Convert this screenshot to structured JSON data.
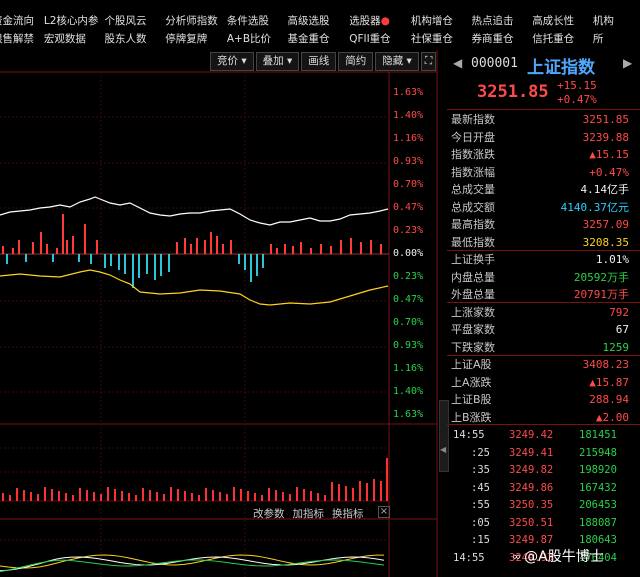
{
  "menu_row1": [
    "资金流向",
    "L2核心内参",
    "个股风云",
    "分析师指数",
    "条件选股",
    "高级选股",
    "选股器",
    "机构增仓",
    "热点追击",
    "高成长性",
    "机构"
  ],
  "menu_row2": [
    "限售解禁",
    "宏观数据",
    "股东人数",
    "停牌复牌",
    "A+B比价",
    "基金重仓",
    "QFII重仓",
    "社保重仓",
    "券商重仓",
    "信托重仓",
    "所"
  ],
  "toolbar": [
    "竞价",
    "叠加",
    "画线",
    "简约",
    "隐藏"
  ],
  "axis_labels": {
    "up": [
      "1.63%",
      "1.40%",
      "1.16%",
      "0.93%",
      "0.70%",
      "0.47%",
      "0.23%"
    ],
    "zero": "0.00%",
    "down": [
      "0.23%",
      "0.47%",
      "0.70%",
      "0.93%",
      "1.16%",
      "1.40%",
      "1.63%"
    ]
  },
  "sub_toolbar": [
    "改参数",
    "加指标",
    "换指标"
  ],
  "panel": {
    "code": "000001",
    "name": "上证指数",
    "price": "3251.85",
    "change": "+15.15",
    "change_pct": "+0.47%",
    "rows": [
      {
        "label": "最新指数",
        "value": "3251.85",
        "color": "red"
      },
      {
        "label": "今日开盘",
        "value": "3239.88",
        "color": "red"
      },
      {
        "label": "指数涨跌",
        "value": "▲15.15",
        "color": "red"
      },
      {
        "label": "指数涨幅",
        "value": "+0.47%",
        "color": "red"
      },
      {
        "label": "总成交量",
        "value": "4.14亿手",
        "color": "white"
      },
      {
        "label": "总成交额",
        "value": "4140.37亿元",
        "color": "cyan"
      },
      {
        "label": "最高指数",
        "value": "3257.09",
        "color": "red"
      },
      {
        "label": "最低指数",
        "value": "3208.35",
        "color": "yellow"
      },
      {
        "label": "上证换手",
        "value": "1.01%",
        "color": "white"
      },
      {
        "label": "内盘总量",
        "value": "20592万手",
        "color": "green"
      },
      {
        "label": "外盘总量",
        "value": "20791万手",
        "color": "red"
      },
      {
        "label": "上涨家数",
        "value": "792",
        "color": "red"
      },
      {
        "label": "平盘家数",
        "value": "67",
        "color": "white"
      },
      {
        "label": "下跌家数",
        "value": "1259",
        "color": "green"
      },
      {
        "label": "上证A股",
        "value": "3408.23",
        "color": "red"
      },
      {
        "label": "上A涨跌",
        "value": "▲15.87",
        "color": "red"
      },
      {
        "label": "上证B股",
        "value": "288.94",
        "color": "red"
      },
      {
        "label": "上B涨跌",
        "value": "▲2.00",
        "color": "red"
      }
    ]
  },
  "ticks": [
    {
      "time": "14:55",
      "price": "3249.42",
      "vol": "181451"
    },
    {
      "time": ":25",
      "price": "3249.41",
      "vol": "215948"
    },
    {
      "time": ":35",
      "price": "3249.82",
      "vol": "198920"
    },
    {
      "time": ":45",
      "price": "3249.86",
      "vol": "167432"
    },
    {
      "time": ":55",
      "price": "3250.35",
      "vol": "206453"
    },
    {
      "time": ":05",
      "price": "3250.51",
      "vol": "188087"
    },
    {
      "time": ":15",
      "price": "3249.87",
      "vol": "180643"
    },
    {
      "time": "14:55",
      "price": "3249.93",
      "vol": "176404"
    }
  ],
  "watermark": "@A股牛博士",
  "colors": {
    "up": "#ff4a4a",
    "down": "#2ad04a",
    "price_line": "#ffffff",
    "avg_line": "#ffd21f",
    "volume": "#ff3030",
    "frame": "#7a1111"
  }
}
